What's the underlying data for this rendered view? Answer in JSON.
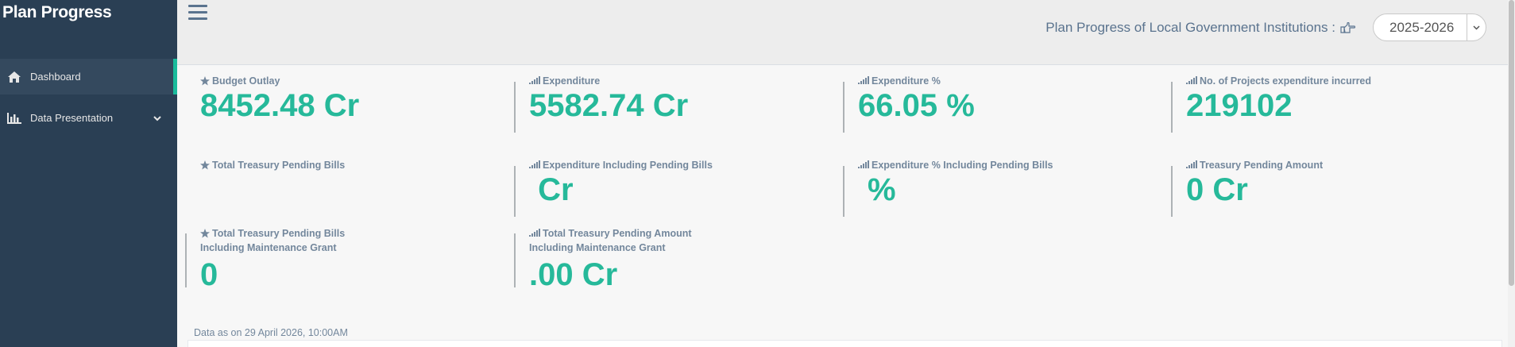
{
  "sidebar": {
    "brand": "Plan Progress",
    "items": [
      {
        "label": "Dashboard",
        "icon": "home-icon",
        "active": true
      },
      {
        "label": "Data Presentation",
        "icon": "bar-chart-icon",
        "active": false
      }
    ]
  },
  "header": {
    "title": "Plan Progress of Local Government Institutions :",
    "pointer_icon": "hand-pointer-icon",
    "year_selected": "2025-2026"
  },
  "stats": [
    {
      "label": "Budget Outlay",
      "icon": "star-icon",
      "value": "8452.48 Cr"
    },
    {
      "label": "Expenditure",
      "icon": "signal-icon",
      "value": "5582.74 Cr"
    },
    {
      "label": "Expenditure %",
      "icon": "signal-icon",
      "value": "66.05 %"
    },
    {
      "label": "No. of Projects expenditure incurred",
      "icon": "signal-icon",
      "value": "219102"
    },
    {
      "label": "Total Treasury Pending Bills",
      "icon": "star-icon",
      "value": ""
    },
    {
      "label": "Expenditure Including Pending Bills",
      "icon": "signal-icon",
      "value": " Cr"
    },
    {
      "label": "Expenditure % Including Pending Bills",
      "icon": "signal-icon",
      "value": "%"
    },
    {
      "label": "Treasury Pending Amount",
      "icon": "signal-icon",
      "value": "0 Cr"
    },
    {
      "label": "Total Treasury Pending Bills",
      "label2": "Including Maintenance Grant",
      "icon": "star-icon",
      "value": "0"
    },
    {
      "label": "Total Treasury Pending Amount",
      "label2": "Including Maintenance Grant",
      "icon": "signal-icon",
      "value": ".00 Cr"
    }
  ],
  "footer": {
    "data_as_on": "Data as on 29 April 2026, 10:00AM"
  },
  "colors": {
    "sidebar_bg": "#2a3f54",
    "accent": "#26b99a",
    "label": "#73879c"
  }
}
